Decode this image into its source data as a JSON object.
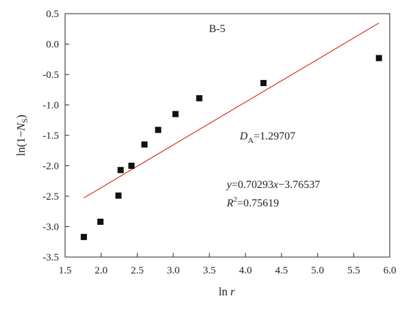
{
  "chart_data": {
    "type": "scatter",
    "title": "B-5",
    "xlabel": {
      "base": "ln",
      "var": "r"
    },
    "ylabel": {
      "pre": "ln(1−",
      "var": "N",
      "sub": "S",
      "post": ")"
    },
    "xlim": [
      1.5,
      6.0
    ],
    "ylim": [
      -3.5,
      0.5
    ],
    "xticks": [
      "1.5",
      "2.0",
      "2.5",
      "3.0",
      "3.5",
      "4.0",
      "4.5",
      "5.0",
      "5.5",
      "6.0"
    ],
    "yticks": [
      "0.5",
      "0.0",
      "-0.5",
      "-1.0",
      "-1.5",
      "-2.0",
      "-2.5",
      "-3.0",
      "-3.5"
    ],
    "grid": false,
    "legend": "none",
    "series": [
      {
        "marker": "square",
        "color": "#111111",
        "points": [
          {
            "x": 1.76,
            "y": -3.17
          },
          {
            "x": 1.99,
            "y": -2.92
          },
          {
            "x": 2.24,
            "y": -2.49
          },
          {
            "x": 2.27,
            "y": -2.07
          },
          {
            "x": 2.42,
            "y": -2.0
          },
          {
            "x": 2.6,
            "y": -1.65
          },
          {
            "x": 2.79,
            "y": -1.41
          },
          {
            "x": 3.03,
            "y": -1.15
          },
          {
            "x": 3.36,
            "y": -0.89
          },
          {
            "x": 4.25,
            "y": -0.64
          },
          {
            "x": 5.85,
            "y": -0.23
          }
        ]
      }
    ],
    "fit_line": {
      "color": "#d0301c",
      "slope": 0.70293,
      "intercept": -3.76537,
      "x_range": [
        1.76,
        5.85
      ]
    },
    "annotations": {
      "da": {
        "var": "D",
        "sub": "A",
        "value": "=1.29707"
      },
      "equation": {
        "y": "y",
        "mid": "=0.70293",
        "x": "x",
        "tail": "−3.76537"
      },
      "r2": {
        "var": "R",
        "sup": "2",
        "value": "=0.75619"
      }
    }
  }
}
